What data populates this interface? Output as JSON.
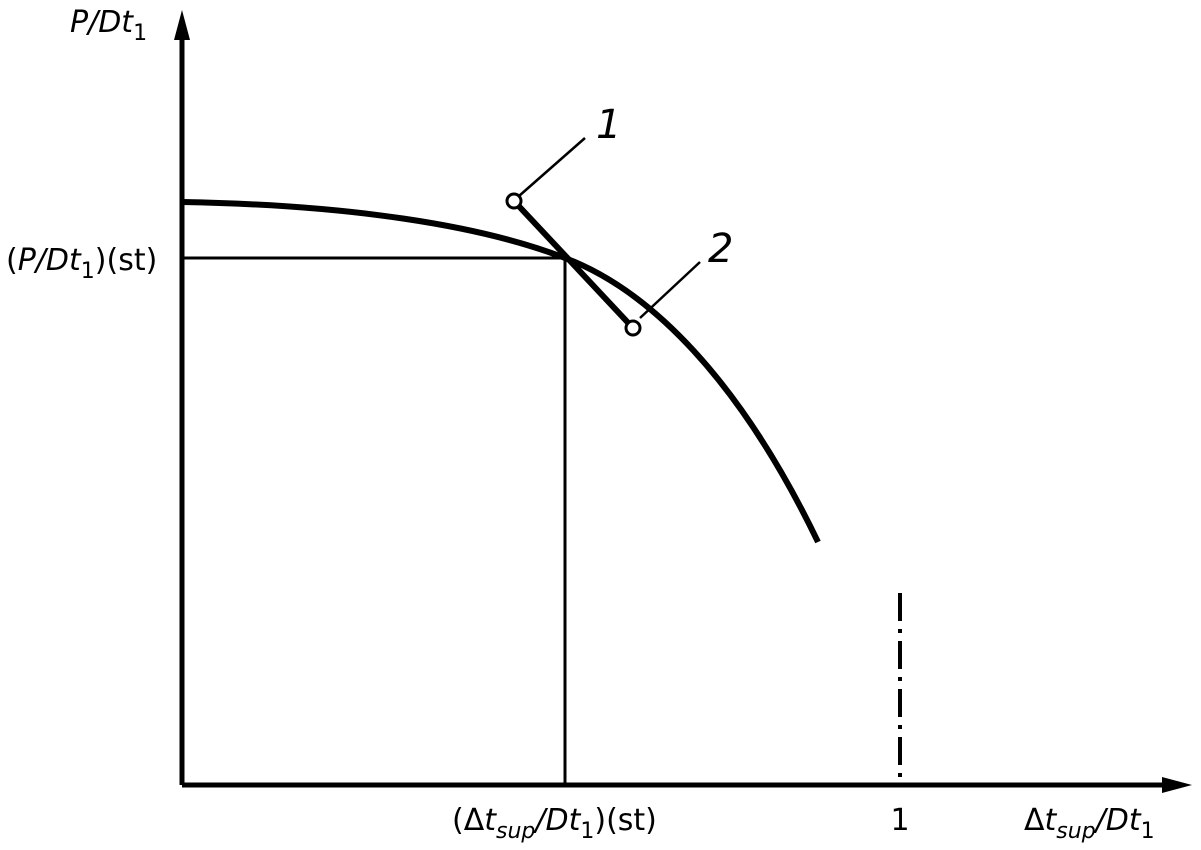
{
  "y_axis_label": {
    "main": "P/Dt",
    "sub": "1"
  },
  "y_marker_label": {
    "open": "(",
    "main": "P/Dt",
    "sub": "1",
    "close": ")(st)"
  },
  "x_marker_label": {
    "open": "(Δ",
    "main": "t",
    "sub": "sup",
    "mid": "/Dt",
    "sub2": "1",
    "close": ")(st)"
  },
  "x_axis_label": {
    "open": "Δ",
    "main": "t",
    "sub": "sup",
    "mid": "/Dt",
    "sub2": "1"
  },
  "x_tick_label": "1",
  "callouts": [
    {
      "label": "1"
    },
    {
      "label": "2"
    }
  ]
}
